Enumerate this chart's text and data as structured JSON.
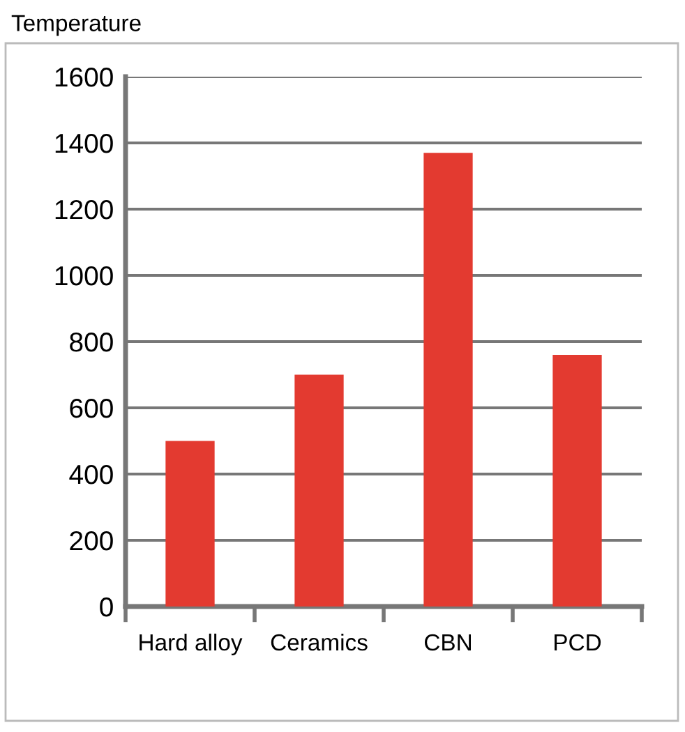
{
  "chart_data": {
    "type": "bar",
    "ylabel": "Temperature",
    "categories": [
      "Hard alloy",
      "Ceramics",
      "CBN",
      "PCD"
    ],
    "values": [
      500,
      700,
      1370,
      760
    ],
    "color": "#e33a30",
    "ylim": [
      0,
      1600
    ],
    "yticks": [
      0,
      200,
      400,
      600,
      800,
      1000,
      1200,
      1400,
      1600
    ],
    "grid": "y"
  }
}
